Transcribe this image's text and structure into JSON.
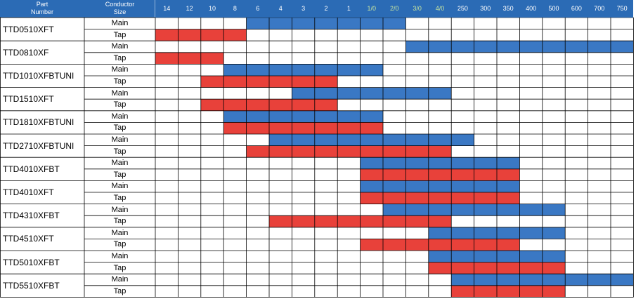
{
  "header": {
    "part_label_line1": "Part",
    "part_label_line2": "Number",
    "conductor_label_line1": "Conductor",
    "conductor_label_line2": "Size"
  },
  "colors": {
    "header_bg": "#2b6bb5",
    "main_bar": "#3a78c4",
    "tap_bar": "#e8413a",
    "grid": "#000000",
    "green_text": "#c8e6a0"
  },
  "chart_data": {
    "type": "bar",
    "orientation": "horizontal-range",
    "categories": [
      "14",
      "12",
      "10",
      "8",
      "6",
      "4",
      "3",
      "2",
      "1",
      "1/0",
      "2/0",
      "3/0",
      "4/0",
      "250",
      "300",
      "350",
      "400",
      "500",
      "600",
      "700",
      "750"
    ],
    "green_categories": [
      "1/0",
      "2/0",
      "3/0",
      "4/0"
    ],
    "row_labels": {
      "main": "Main",
      "tap": "Tap"
    },
    "series": [
      {
        "name": "Main",
        "color": "#3a78c4"
      },
      {
        "name": "Tap",
        "color": "#e8413a"
      }
    ],
    "parts": [
      {
        "part": "TTD0510XFT",
        "main": [
          "6",
          "2/0"
        ],
        "tap": [
          "14",
          "8"
        ]
      },
      {
        "part": "TTD0810XF",
        "main": [
          "3/0",
          "750"
        ],
        "tap": [
          "14",
          "10"
        ]
      },
      {
        "part": "TTD1010XFBTUNI",
        "main": [
          "8",
          "1/0"
        ],
        "tap": [
          "10",
          "2"
        ]
      },
      {
        "part": "TTD1510XFT",
        "main": [
          "3",
          "4/0"
        ],
        "tap": [
          "10",
          "2"
        ]
      },
      {
        "part": "TTD1810XFBTUNI",
        "main": [
          "8",
          "1/0"
        ],
        "tap": [
          "8",
          "1/0"
        ]
      },
      {
        "part": "TTD2710XFBTUNI",
        "main": [
          "4",
          "250"
        ],
        "tap": [
          "6",
          "4/0"
        ]
      },
      {
        "part": "TTD4010XFBT",
        "main": [
          "1/0",
          "350"
        ],
        "tap": [
          "1/0",
          "350"
        ]
      },
      {
        "part": "TTD4010XFT",
        "main": [
          "1/0",
          "350"
        ],
        "tap": [
          "1/0",
          "350"
        ]
      },
      {
        "part": "TTD4310XFBT",
        "main": [
          "2/0",
          "500"
        ],
        "tap": [
          "4",
          "4/0"
        ]
      },
      {
        "part": "TTD4510XFT",
        "main": [
          "4/0",
          "500"
        ],
        "tap": [
          "1/0",
          "350"
        ]
      },
      {
        "part": "TTD5010XFBT",
        "main": [
          "4/0",
          "500"
        ],
        "tap": [
          "4/0",
          "500"
        ]
      },
      {
        "part": "TTD5510XFBT",
        "main": [
          "250",
          "750"
        ],
        "tap": [
          "250",
          "500"
        ]
      }
    ]
  }
}
